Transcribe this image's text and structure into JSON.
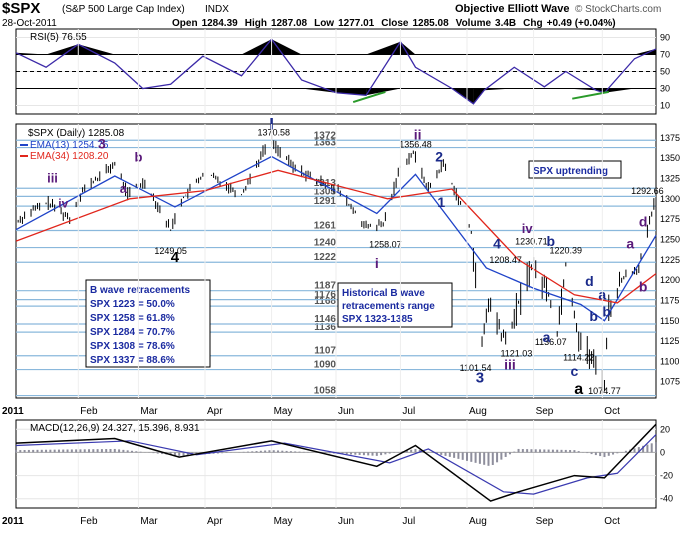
{
  "header": {
    "symbol": "$SPX",
    "name": "(S&P 500 Large Cap Index)",
    "exchange": "INDX",
    "date": "28-Oct-2011",
    "open_label": "Open",
    "open": "1284.39",
    "high_label": "High",
    "high": "1287.08",
    "low_label": "Low",
    "low": "1277.01",
    "close_label": "Close",
    "close": "1285.08",
    "volume_label": "Volume",
    "volume": "3.4B",
    "chg_label": "Chg",
    "chg": "+0.49 (+0.04%)",
    "owner": "Objective Elliott Wave",
    "credit": "© StockCharts.com"
  },
  "colors": {
    "price": "#000000",
    "ema13": "#1f43c8",
    "ema34": "#e1261c",
    "rsi": "#3c2aa8",
    "macd": "#000000",
    "signal": "#3a3ab0",
    "histogram": "#8e8e9c",
    "fib_line": "#8ab8dc",
    "green_line": "#2a9a2a",
    "label_purple": "#5a1a7a",
    "label_blue": "#1a2a8a",
    "box_text": "#1a2aa0"
  },
  "chart_data": [
    {
      "type": "line",
      "panel": "RSI",
      "title": "RSI(5) 76.55",
      "ylim": [
        0,
        100
      ],
      "y_ticks": [
        "90",
        "70",
        "50",
        "30",
        "10"
      ],
      "overbought": 70,
      "oversold": 30,
      "x": [
        "2011-01-03",
        "2011-01-17",
        "2011-02-01",
        "2011-02-18",
        "2011-03-03",
        "2011-03-16",
        "2011-03-31",
        "2011-04-18",
        "2011-05-02",
        "2011-05-16",
        "2011-06-01",
        "2011-06-15",
        "2011-07-01",
        "2011-07-08",
        "2011-07-25",
        "2011-08-04",
        "2011-08-09",
        "2011-08-23",
        "2011-09-06",
        "2011-09-16",
        "2011-09-30",
        "2011-10-04",
        "2011-10-18",
        "2011-10-28"
      ],
      "values": [
        72,
        55,
        82,
        60,
        30,
        35,
        68,
        45,
        88,
        40,
        25,
        22,
        85,
        55,
        30,
        12,
        28,
        55,
        32,
        50,
        28,
        25,
        65,
        76.55
      ]
    },
    {
      "type": "line",
      "panel": "price",
      "title": "$SPX (Daily) 1285.08",
      "ylim": [
        1055,
        1392
      ],
      "y_ticks": [
        1075,
        1100,
        1125,
        1150,
        1175,
        1200,
        1225,
        1250,
        1275,
        1300,
        1325,
        1350,
        1375
      ],
      "x_labels": [
        "2011",
        "Feb",
        "Mar",
        "Apr",
        "May",
        "Jun",
        "Jul",
        "Aug",
        "Sep",
        "Oct"
      ],
      "series": [
        {
          "name": "$SPX (Daily) 1285.08",
          "x": [
            "2011-01-03",
            "2011-01-10",
            "2011-01-18",
            "2011-01-28",
            "2011-02-03",
            "2011-02-18",
            "2011-02-24",
            "2011-03-04",
            "2011-03-16",
            "2011-03-21",
            "2011-04-01",
            "2011-04-18",
            "2011-04-29",
            "2011-05-02",
            "2011-05-12",
            "2011-05-25",
            "2011-06-01",
            "2011-06-15",
            "2011-06-23",
            "2011-07-01",
            "2011-07-07",
            "2011-07-14",
            "2011-07-21",
            "2011-07-28",
            "2011-08-03",
            "2011-08-08",
            "2011-08-11",
            "2011-08-19",
            "2011-08-31",
            "2011-09-08",
            "2011-09-12",
            "2011-09-16",
            "2011-09-22",
            "2011-10-04",
            "2011-10-06",
            "2011-10-13",
            "2011-10-20",
            "2011-10-27",
            "2011-10-28"
          ],
          "values": [
            1271,
            1285,
            1295,
            1276,
            1310,
            1343,
            1306,
            1321,
            1262,
            1298,
            1333,
            1305,
            1363,
            1370.58,
            1339,
            1320,
            1314,
            1265,
            1268,
            1340,
            1356.48,
            1312,
            1344,
            1300,
            1260,
            1119,
            1172,
            1123,
            1219,
            1185,
            1136,
            1220,
            1130,
            1074.77,
            1165,
            1205,
            1215,
            1292.66,
            1285.08
          ]
        },
        {
          "name": "EMA(13) 1254.75",
          "x": [
            "2011-01-03",
            "2011-02-18",
            "2011-03-18",
            "2011-05-02",
            "2011-06-20",
            "2011-07-08",
            "2011-08-10",
            "2011-09-01",
            "2011-09-23",
            "2011-10-04",
            "2011-10-28"
          ],
          "values": [
            1262,
            1328,
            1290,
            1352,
            1282,
            1330,
            1215,
            1190,
            1170,
            1150,
            1255
          ]
        },
        {
          "name": "EMA(34) 1208.20",
          "x": [
            "2011-01-03",
            "2011-02-25",
            "2011-04-01",
            "2011-05-05",
            "2011-06-25",
            "2011-07-25",
            "2011-08-25",
            "2011-09-20",
            "2011-10-10",
            "2011-10-28"
          ],
          "values": [
            1248,
            1300,
            1310,
            1335,
            1300,
            1312,
            1225,
            1182,
            1172,
            1208
          ]
        }
      ],
      "fib_levels": [
        1058,
        1090,
        1107,
        1136,
        1146,
        1168,
        1176,
        1187,
        1222,
        1240,
        1261,
        1291,
        1303,
        1313,
        1363,
        1372
      ],
      "wave_labels": [
        "3",
        "iii",
        "iv",
        "b",
        "a",
        "4",
        "I",
        "ii",
        "2",
        "1",
        "3",
        "4",
        "iv",
        "b",
        "iii",
        "a",
        "b",
        "c",
        "a",
        "d",
        "a",
        "b",
        "a",
        "i"
      ],
      "price_annotations": [
        "1370.58",
        "1356.48",
        "1249.05",
        "1258.07",
        "1230.71",
        "1220.39",
        "1208.47",
        "1121.03",
        "1101.54",
        "1136.07",
        "1114.22",
        "1074.77",
        "1292.66"
      ]
    },
    {
      "type": "line",
      "panel": "MACD",
      "title": "MACD(12,26,9) 24.327, 15.396, 8.931",
      "ylim": [
        -48,
        28
      ],
      "y_ticks": [
        "20",
        "0",
        "-20",
        "-40"
      ],
      "series": [
        {
          "name": "MACD",
          "x": [
            "2011-01-03",
            "2011-02-18",
            "2011-03-20",
            "2011-05-02",
            "2011-06-20",
            "2011-07-08",
            "2011-08-12",
            "2011-08-25",
            "2011-09-20",
            "2011-10-04",
            "2011-10-28"
          ],
          "values": [
            8,
            12,
            -4,
            10,
            -12,
            6,
            -42,
            -34,
            -20,
            -22,
            24.327
          ]
        },
        {
          "name": "Signal",
          "x": [
            "2011-01-03",
            "2011-02-25",
            "2011-03-28",
            "2011-05-08",
            "2011-06-26",
            "2011-07-14",
            "2011-08-18",
            "2011-09-01",
            "2011-09-26",
            "2011-10-10",
            "2011-10-28"
          ],
          "values": [
            6,
            10,
            -2,
            8,
            -9,
            3,
            -34,
            -36,
            -22,
            -18,
            15.396
          ]
        },
        {
          "name": "Histogram",
          "x": [
            "2011-01-03",
            "2011-02-18",
            "2011-03-20",
            "2011-05-02",
            "2011-06-20",
            "2011-07-08",
            "2011-08-12",
            "2011-08-25",
            "2011-09-20",
            "2011-10-04",
            "2011-10-28"
          ],
          "values": [
            2,
            3,
            -3,
            2,
            -3,
            3,
            -12,
            3,
            2,
            -4,
            8.931
          ]
        }
      ]
    }
  ],
  "annotation_boxes": {
    "b_wave": {
      "title": "B wave retracements",
      "lines": [
        "SPX 1223 = 50.0%",
        "SPX 1258 = 61.8%",
        "SPX 1284 = 70.7%",
        "SPX 1308 = 78.6%",
        "SPX 1337 = 88.6%"
      ]
    },
    "historical": {
      "lines": [
        "Historical B wave",
        "retracements range",
        "SPX 1323-1385"
      ]
    },
    "uptrend": "SPX uptrending"
  },
  "footer_year": "2011"
}
